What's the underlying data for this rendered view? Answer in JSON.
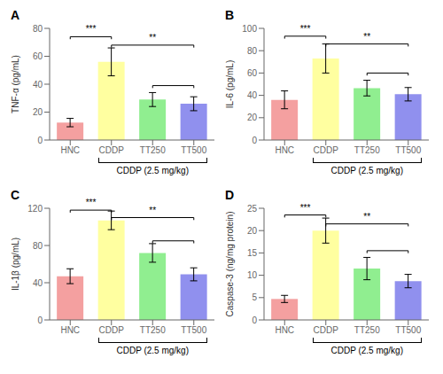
{
  "chart_data": [
    {
      "type": "bar",
      "title": "A",
      "ylabel": "TNF-α (pg/mL)",
      "xlabel": "CDDP (2.5 mg/kg)",
      "categories": [
        "HNC",
        "CDDP",
        "TT250",
        "TT500"
      ],
      "values": [
        12.5,
        56.0,
        29.0,
        26.0
      ],
      "errors": [
        3.0,
        10.0,
        5.0,
        5.0
      ],
      "colors": [
        "#F4A0A0",
        "#FFFFA0",
        "#90EE90",
        "#9090EE"
      ],
      "ylim": [
        0,
        80
      ],
      "yticks": [
        0,
        20,
        40,
        60,
        80
      ],
      "annotations": [
        {
          "text": "***",
          "x1": "HNC",
          "x2": "CDDP",
          "y": 74
        },
        {
          "text": "**",
          "x1": "CDDP",
          "x2": "TT500",
          "y": 68
        },
        {
          "x1": "TT250",
          "x2": "TT500",
          "y": 39
        }
      ]
    },
    {
      "type": "bar",
      "title": "B",
      "ylabel": "IL-6 (pg/mL)",
      "xlabel": "CDDP (2.5 mg/kg)",
      "categories": [
        "HNC",
        "CDDP",
        "TT250",
        "TT500"
      ],
      "values": [
        36.0,
        73.0,
        46.5,
        41.0
      ],
      "errors": [
        8.0,
        13.0,
        7.0,
        6.0
      ],
      "colors": [
        "#F4A0A0",
        "#FFFFA0",
        "#90EE90",
        "#9090EE"
      ],
      "ylim": [
        0,
        100
      ],
      "yticks": [
        0,
        20,
        40,
        60,
        80,
        100
      ],
      "annotations": [
        {
          "text": "***",
          "x1": "HNC",
          "x2": "CDDP",
          "y": 93
        },
        {
          "text": "**",
          "x1": "CDDP",
          "x2": "TT500",
          "y": 86
        },
        {
          "x1": "TT250",
          "x2": "TT500",
          "y": 60
        }
      ]
    },
    {
      "type": "bar",
      "title": "C",
      "ylabel": "IL-1β (pg/mL)",
      "xlabel": "CDDP (2.5 mg/kg)",
      "categories": [
        "HNC",
        "CDDP",
        "TT250",
        "TT500"
      ],
      "values": [
        47.0,
        107.0,
        72.0,
        49.0
      ],
      "errors": [
        8.0,
        10.0,
        10.0,
        7.0
      ],
      "colors": [
        "#F4A0A0",
        "#FFFFA0",
        "#90EE90",
        "#9090EE"
      ],
      "ylim": [
        0,
        120
      ],
      "yticks": [
        0,
        40,
        80,
        120
      ],
      "annotations": [
        {
          "text": "***",
          "x1": "HNC",
          "x2": "CDDP",
          "y": 118
        },
        {
          "text": "**",
          "x1": "CDDP",
          "x2": "TT500",
          "y": 110
        },
        {
          "x1": "TT250",
          "x2": "TT500",
          "y": 85
        }
      ]
    },
    {
      "type": "bar",
      "title": "D",
      "ylabel": "Caspase-3 (ng/mg protein)",
      "xlabel": "CDDP (2.5 mg/kg)",
      "categories": [
        "HNC",
        "CDDP",
        "TT250",
        "TT500"
      ],
      "values": [
        4.7,
        20.0,
        11.5,
        8.7
      ],
      "errors": [
        0.8,
        2.8,
        2.5,
        1.5
      ],
      "colors": [
        "#F4A0A0",
        "#FFFFA0",
        "#90EE90",
        "#9090EE"
      ],
      "ylim": [
        0,
        25
      ],
      "yticks": [
        0,
        5,
        10,
        15,
        20,
        25
      ],
      "annotations": [
        {
          "text": "***",
          "x1": "HNC",
          "x2": "CDDP",
          "y": 23.5
        },
        {
          "text": "**",
          "x1": "CDDP",
          "x2": "TT500",
          "y": 21.5
        },
        {
          "x1": "TT250",
          "x2": "TT500",
          "y": 15.5
        }
      ]
    }
  ]
}
